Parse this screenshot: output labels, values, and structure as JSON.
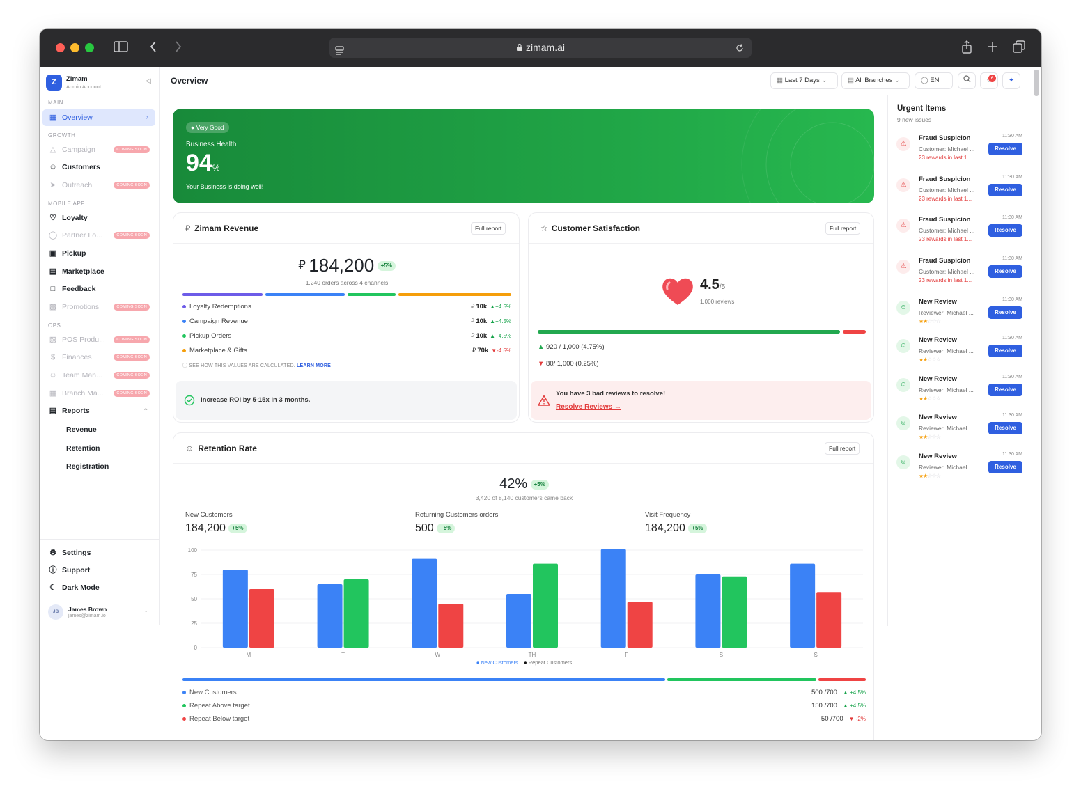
{
  "browser": {
    "url": "zimam.ai"
  },
  "sidebar": {
    "brand": {
      "logo_letter": "Z",
      "name": "Zimam",
      "sub": "Admin Account"
    },
    "sections": {
      "main": "MAIN",
      "growth": "GROWTH",
      "mobile": "MOBILE APP",
      "ops": "OPS"
    },
    "coming_soon": "COMING SOON",
    "items": {
      "overview": "Overview",
      "campaign": "Campaign",
      "customers": "Customers",
      "outreach": "Outreach",
      "loyalty": "Loyalty",
      "partner": "Partner Lo...",
      "pickup": "Pickup",
      "marketplace": "Marketplace",
      "feedback": "Feedback",
      "promotions": "Promotions",
      "pos": "POS Produ...",
      "finances": "Finances",
      "team": "Team Man...",
      "branch": "Branch Ma...",
      "reports": "Reports",
      "revenue": "Revenue",
      "retention": "Retention",
      "registration": "Registration"
    },
    "bottom": {
      "settings": "Settings",
      "support": "Support",
      "dark_mode": "Dark Mode"
    },
    "user": {
      "initials": "JB",
      "name": "James Brown",
      "email": "james@zimam.io"
    }
  },
  "topbar": {
    "title": "Overview",
    "period": "Last 7 Days",
    "branches": "All Branches",
    "lang": "EN",
    "notif_count": "6"
  },
  "health": {
    "chip": "Very Good",
    "label": "Business Health",
    "value": "94",
    "unit": "%",
    "msg": "Your Business is doing well!"
  },
  "revenue": {
    "title": "Zimam Revenue",
    "full_report": "Full report",
    "currency": "⃁",
    "total": "184,200",
    "change": "+5%",
    "sub": "1,240 orders across 4 channels",
    "rows": [
      {
        "label": "Loyalty Redemptions",
        "value": "10k",
        "change": "+4.5%",
        "color": "#6d5ce8"
      },
      {
        "label": "Campaign Revenue",
        "value": "10k",
        "change": "+4.5%",
        "color": "#3b82f6"
      },
      {
        "label": "Pickup Orders",
        "value": "10k",
        "change": "+4.5%",
        "color": "#22c55e"
      },
      {
        "label": "Marketplace & Gifts",
        "value": "70k",
        "change": "-4.5%",
        "color": "#f59e0b"
      }
    ],
    "how": "SEE HOW THIS VALUES ARE CALCULATED.",
    "learn": "LEARN MORE",
    "roi": "Increase ROI by 5-15x in 3 months."
  },
  "satisfaction": {
    "title": "Customer Satisfaction",
    "full_report": "Full report",
    "score": "4.5",
    "outof": "/5",
    "reviews": "1,000 reviews",
    "positive": "920 / 1,000 (4.75%)",
    "negative": "80/ 1,000 (0.25%)",
    "alert": "You have 3 bad reviews to resolve!",
    "alert_link": "Resolve Reviews →"
  },
  "retention": {
    "title": "Retention Rate",
    "full_report": "Full report",
    "rate": "42%",
    "change": "+5%",
    "sub": "3,420 of 8,140 customers came back",
    "stats": [
      {
        "label": "New Customers",
        "value": "184,200",
        "change": "+5%"
      },
      {
        "label": "Returning Customers orders",
        "value": "500",
        "change": "+5%"
      },
      {
        "label": "Visit Frequency",
        "value": "184,200",
        "change": "+5%"
      }
    ],
    "rows": [
      {
        "label": "New Customers",
        "value": "500 /700",
        "change": "+4.5%",
        "color": "#3b82f6",
        "dir": "up"
      },
      {
        "label": "Repeat Above target",
        "value": "150 /700",
        "change": "+4.5%",
        "color": "#22c55e",
        "dir": "up"
      },
      {
        "label": "Repeat Below target",
        "value": "50 /700",
        "change": "-2%",
        "color": "#ef4444",
        "dir": "down"
      }
    ]
  },
  "chart_data": {
    "type": "bar",
    "categories": [
      "M",
      "T",
      "W",
      "TH",
      "F",
      "S",
      "S"
    ],
    "ylim": [
      0,
      100
    ],
    "yticks": [
      0,
      25,
      50,
      75,
      100
    ],
    "series": [
      {
        "name": "New Customers",
        "color": "#3b82f6",
        "values": [
          80,
          65,
          91,
          55,
          101,
          75,
          86
        ]
      },
      {
        "name": "Repeat Customers",
        "values": [
          60,
          70,
          45,
          86,
          47,
          73,
          57
        ]
      }
    ],
    "repeat_colors": [
      "#ef4444",
      "#22c55e",
      "#ef4444",
      "#22c55e",
      "#ef4444",
      "#22c55e",
      "#ef4444"
    ],
    "legend": [
      "New Customers",
      "Repeat Customers"
    ]
  },
  "urgent": {
    "title": "Urgent Items",
    "sub": "9 new issues",
    "resolve": "Resolve",
    "items": [
      {
        "kind": "fraud",
        "title": "Fraud Suspicion",
        "desc": "Customer: Michael ...",
        "note": "23 rewards in last 1...",
        "time": "11:30 AM"
      },
      {
        "kind": "fraud",
        "title": "Fraud Suspicion",
        "desc": "Customer: Michael ...",
        "note": "23 rewards in last 1...",
        "time": "11:30 AM"
      },
      {
        "kind": "fraud",
        "title": "Fraud Suspicion",
        "desc": "Customer: Michael ...",
        "note": "23 rewards in last 1...",
        "time": "11:30 AM"
      },
      {
        "kind": "fraud",
        "title": "Fraud Suspicion",
        "desc": "Customer: Michael ...",
        "note": "23 rewards in last 1...",
        "time": "11:30 AM"
      },
      {
        "kind": "review",
        "title": "New Review",
        "desc": "Reviewer: Michael ...",
        "rating": 2,
        "time": "11:30 AM"
      },
      {
        "kind": "review",
        "title": "New Review",
        "desc": "Reviewer: Michael ...",
        "rating": 2,
        "time": "11:30 AM"
      },
      {
        "kind": "review",
        "title": "New Review",
        "desc": "Reviewer: Michael ...",
        "rating": 2,
        "time": "11:30 AM"
      },
      {
        "kind": "review",
        "title": "New Review",
        "desc": "Reviewer: Michael ...",
        "rating": 2,
        "time": "11:30 AM"
      },
      {
        "kind": "review",
        "title": "New Review",
        "desc": "Reviewer: Michael ...",
        "rating": 2,
        "time": "11:30 AM"
      }
    ]
  }
}
